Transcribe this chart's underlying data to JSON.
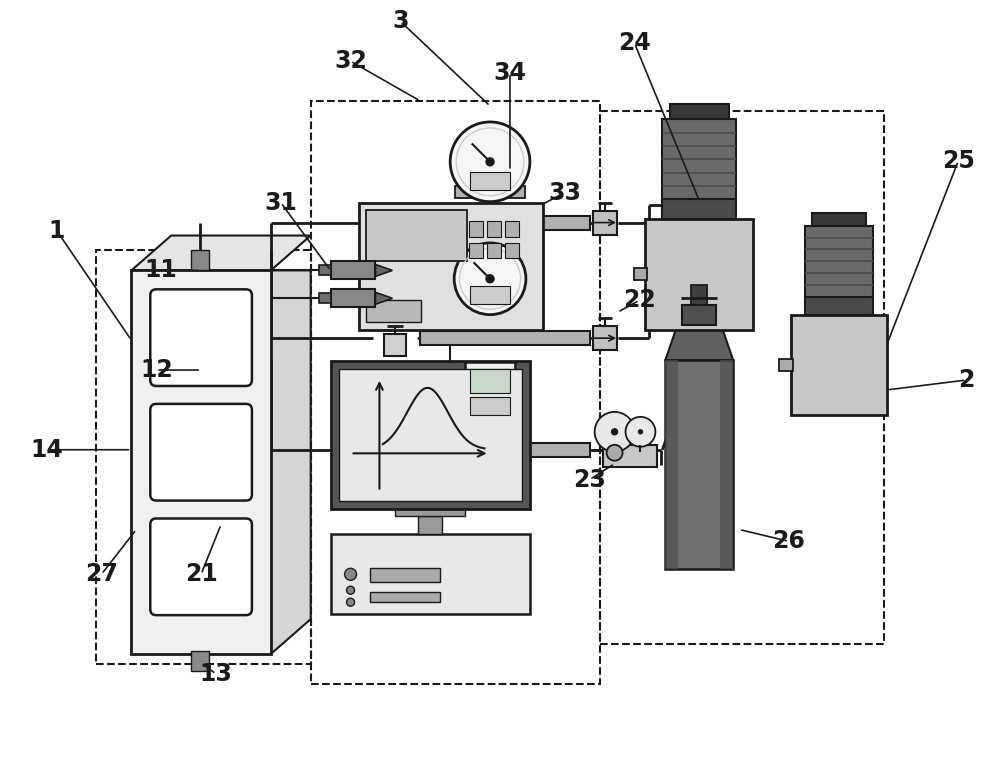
{
  "bg_color": "#ffffff",
  "lc": "#1a1a1a",
  "fig_w": 10.0,
  "fig_h": 7.6,
  "dpi": 100
}
